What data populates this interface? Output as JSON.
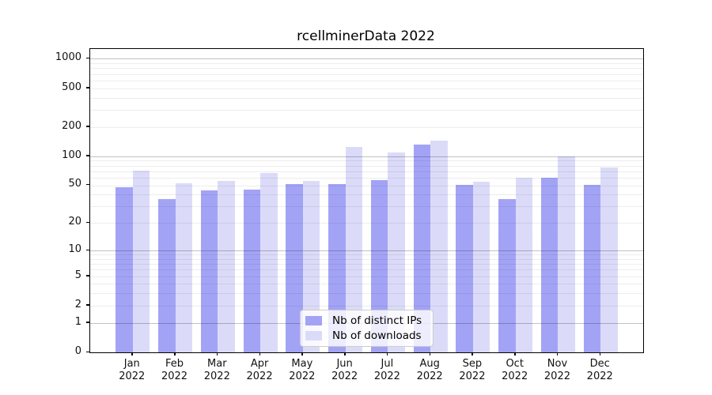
{
  "title": "rcellminerData 2022",
  "chart_data": {
    "type": "bar",
    "title": "rcellminerData 2022",
    "xlabel": "",
    "ylabel": "",
    "scale": "log1p",
    "ylim": [
      0,
      1250
    ],
    "grid": "on",
    "legend_position": "lower center",
    "categories": [
      "Jan",
      "Feb",
      "Mar",
      "Apr",
      "May",
      "Jun",
      "Jul",
      "Aug",
      "Sep",
      "Oct",
      "Nov",
      "Dec"
    ],
    "category_year": "2022",
    "yticks": [
      1000,
      500,
      200,
      100,
      50,
      20,
      10,
      5,
      2,
      1,
      0
    ],
    "minor_gridlines": [
      2,
      3,
      4,
      5,
      6,
      7,
      8,
      9,
      20,
      30,
      40,
      50,
      60,
      70,
      80,
      90,
      200,
      300,
      400,
      500,
      600,
      700,
      800,
      900
    ],
    "major_gridlines": [
      1,
      10,
      100,
      1000
    ],
    "series": [
      {
        "name": "Nb of distinct IPs",
        "color": "#a3a3f6",
        "values": [
          48,
          36,
          44,
          45,
          51,
          51,
          57,
          133,
          50,
          36,
          60,
          50
        ]
      },
      {
        "name": "Nb of downloads",
        "color": "#dbdbf9",
        "values": [
          71,
          52,
          55,
          67,
          56,
          125,
          110,
          144,
          54,
          60,
          100,
          76
        ]
      }
    ]
  },
  "legend": {
    "items": [
      {
        "label": "Nb of distinct IPs",
        "color": "#a3a3f6"
      },
      {
        "label": "Nb of downloads",
        "color": "#dbdbf9"
      }
    ]
  },
  "colors": {
    "axis": "#000000",
    "major_grid": "rgba(0,0,0,0.24)",
    "minor_grid": "rgba(0,0,0,0.07)",
    "background": "#ffffff"
  }
}
